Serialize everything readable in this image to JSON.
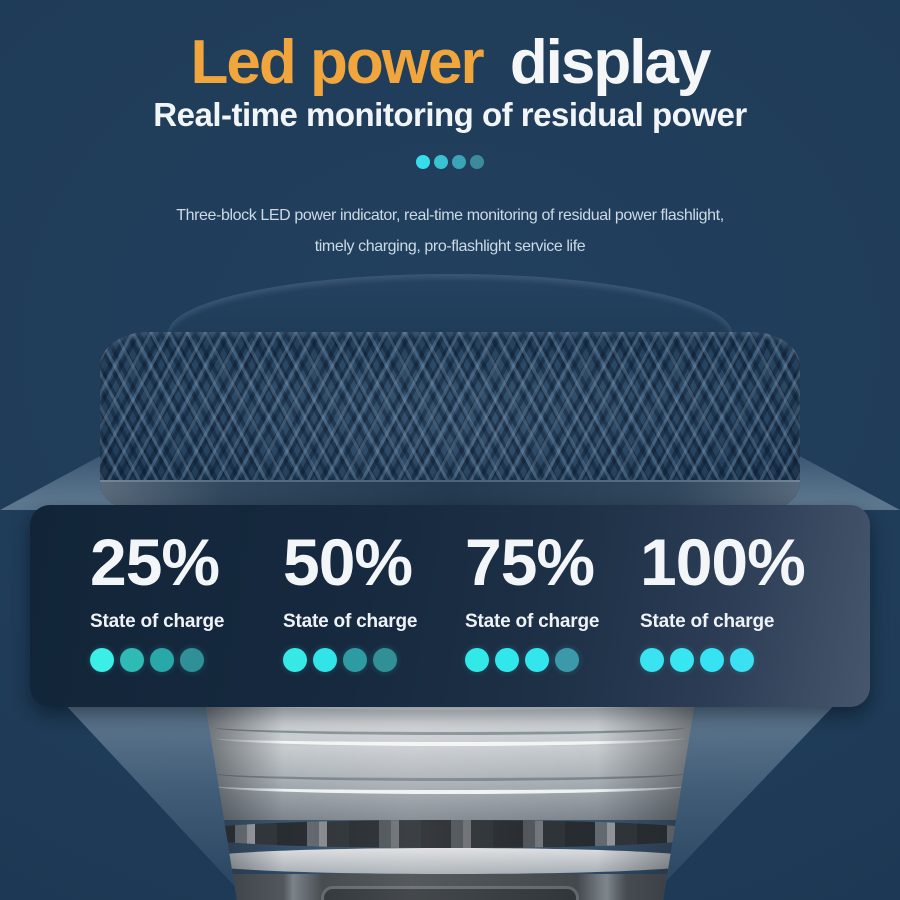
{
  "title": {
    "highlight": "Led power",
    "rest": "display"
  },
  "subtitle": "Real-time monitoring of residual power",
  "description": {
    "line1": "Three-block LED power indicator, real-time monitoring of residual power flashlight,",
    "line2": "timely charging, pro-flashlight service life"
  },
  "decor_dots": [
    "#38DDEB",
    "#39C3D2",
    "#3AA5B6",
    "#3E8A9D"
  ],
  "charge_levels": [
    {
      "percent": "25%",
      "label": "State of charge",
      "dots": [
        "#3BEFE6",
        "#30BAB6",
        "#28A8A8",
        "#2F9197"
      ]
    },
    {
      "percent": "50%",
      "label": "State of charge",
      "dots": [
        "#37E9E5",
        "#30E4E7",
        "#2E9BA2",
        "#309095"
      ]
    },
    {
      "percent": "75%",
      "label": "State of charge",
      "dots": [
        "#31EAE7",
        "#30E8EB",
        "#33E6ED",
        "#3B99A9"
      ]
    },
    {
      "percent": "100%",
      "label": "State of charge",
      "dots": [
        "#39E3F1",
        "#37E6F1",
        "#36E3F3",
        "#3BE0F3"
      ]
    }
  ],
  "colors": {
    "background": "#1E3A56",
    "title_highlight": "#F0A63C",
    "title_rest": "#F4F6F8",
    "panel": "#16293F",
    "lit_dot": "#35E6EC",
    "unlit_dot": "#2F9AA0"
  }
}
